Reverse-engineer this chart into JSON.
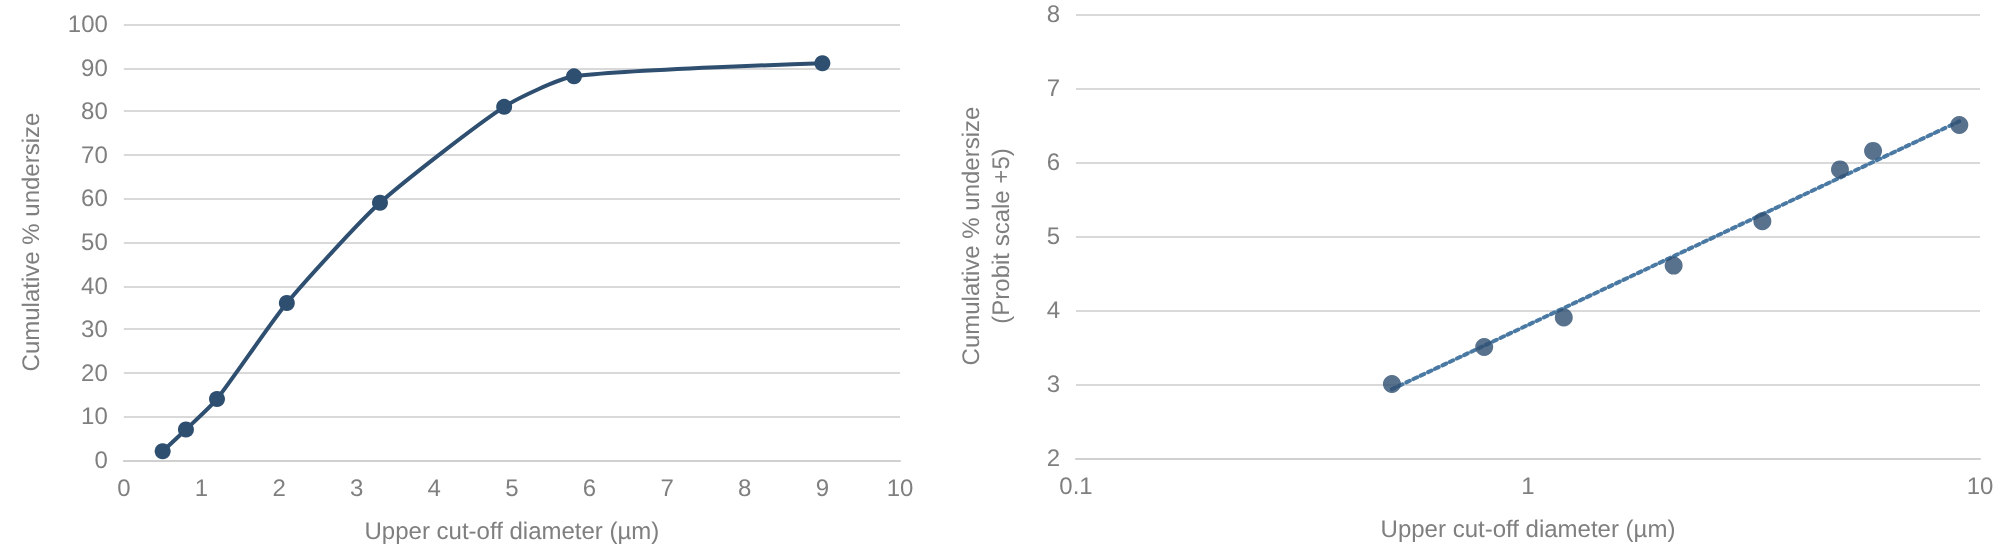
{
  "chart_data": [
    {
      "type": "line",
      "xlabel": "Upper cut-off diameter (µm)",
      "ylabel": "Cumulative % undersize",
      "xlim": [
        0,
        10
      ],
      "xticks": [
        0,
        1,
        2,
        3,
        4,
        5,
        6,
        7,
        8,
        9,
        10
      ],
      "ylim": [
        0,
        100
      ],
      "yticks": [
        0,
        10,
        20,
        30,
        40,
        50,
        60,
        70,
        80,
        90,
        100
      ],
      "grid": "y",
      "marker": "circle",
      "line_style": "solid",
      "series": [
        {
          "color": "#2e4f70",
          "x": [
            0.5,
            0.8,
            1.2,
            2.1,
            3.3,
            4.9,
            5.8,
            9.0
          ],
          "values": [
            2,
            7,
            14,
            36,
            59,
            81,
            88,
            91
          ]
        }
      ]
    },
    {
      "type": "scatter",
      "xlabel": "Upper cut-off diameter (µm)",
      "ylabel": "Cumulative % undersize\n(Probit scale +5)",
      "log": "x",
      "xlim": [
        0.1,
        10
      ],
      "xticks": [
        0.1,
        1,
        10
      ],
      "ylim": [
        2,
        8
      ],
      "yticks": [
        2,
        3,
        4,
        5,
        6,
        7,
        8
      ],
      "grid": "y",
      "marker": "circle",
      "series": [
        {
          "color": "#2e4f70",
          "x": [
            0.5,
            0.8,
            1.2,
            2.1,
            3.3,
            4.9,
            5.8,
            9.0
          ],
          "values": [
            3.0,
            3.5,
            3.9,
            4.6,
            5.2,
            5.9,
            6.15,
            6.5
          ]
        },
        {
          "type": "line",
          "color": "#4a7aa3",
          "line_style": "dotted",
          "marker": "none",
          "x": [
            0.5,
            9.0
          ],
          "values": [
            2.93,
            6.55
          ]
        }
      ]
    }
  ]
}
